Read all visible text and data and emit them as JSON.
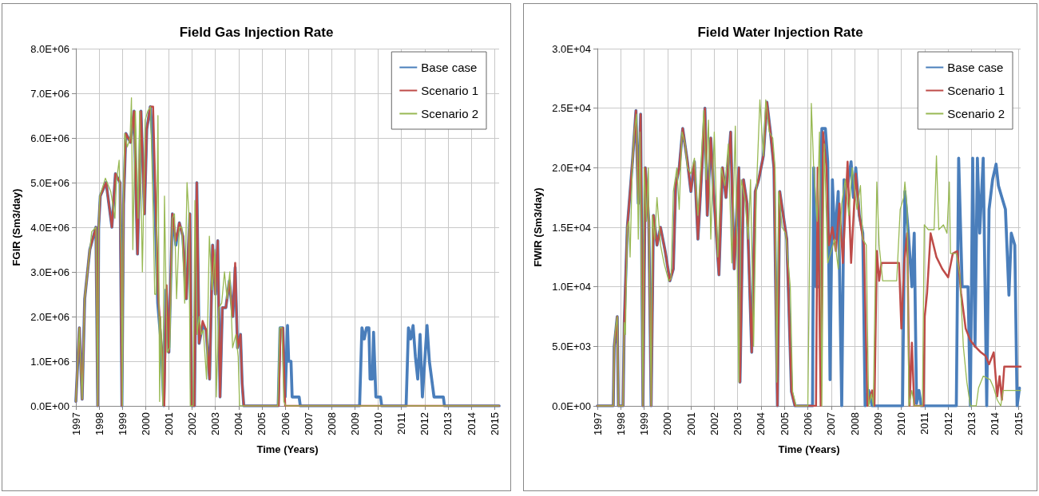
{
  "chart_data": [
    {
      "type": "line",
      "title": "Field Gas Injection Rate",
      "xlabel": "Time (Years)",
      "ylabel": "FGIR (Sm3/day)",
      "xlim": [
        1997,
        2015.2
      ],
      "xticks": [
        1997,
        1998,
        1999,
        2000,
        2001,
        2002,
        2003,
        2004,
        2005,
        2006,
        2007,
        2008,
        2009,
        2010,
        2011,
        2012,
        2013,
        2014,
        2015
      ],
      "ylim": [
        0,
        8000000.0
      ],
      "yticks": [
        {
          "value": 0,
          "label": "0.0E+00"
        },
        {
          "value": 1000000.0,
          "label": "1.0E+06"
        },
        {
          "value": 2000000.0,
          "label": "2.0E+06"
        },
        {
          "value": 3000000.0,
          "label": "3.0E+06"
        },
        {
          "value": 4000000.0,
          "label": "4.0E+06"
        },
        {
          "value": 5000000.0,
          "label": "5.0E+06"
        },
        {
          "value": 6000000.0,
          "label": "6.0E+06"
        },
        {
          "value": 7000000.0,
          "label": "7.0E+06"
        },
        {
          "value": 8000000.0,
          "label": "8.0E+06"
        }
      ],
      "grid": true,
      "legend": "top right",
      "marker": "none",
      "line_style": "solid",
      "series": [
        {
          "name": "Base case",
          "color": "#4a7ebb",
          "x": [
            1997.0,
            1997.15,
            1997.27,
            1997.38,
            1997.6,
            1997.86,
            1997.94,
            1997.98,
            1998.05,
            1998.3,
            1998.55,
            1998.7,
            1998.9,
            1998.98,
            1999.05,
            1999.15,
            1999.35,
            1999.5,
            1999.65,
            1999.8,
            1999.95,
            2000.05,
            2000.2,
            2000.3,
            2000.42,
            2000.52,
            2000.68,
            2000.78,
            2000.88,
            2001.0,
            2001.15,
            2001.3,
            2001.45,
            2001.6,
            2001.75,
            2001.9,
            2001.98,
            2002.1,
            2002.2,
            2002.3,
            2002.45,
            2002.6,
            2002.75,
            2002.88,
            2003.0,
            2003.1,
            2003.2,
            2003.3,
            2003.45,
            2003.6,
            2003.75,
            2003.85,
            2003.95,
            2004.08,
            2004.15,
            2004.22,
            2005.7,
            2005.78,
            2005.9,
            2006.0,
            2006.1,
            2006.15,
            2006.25,
            2006.3,
            2006.6,
            2006.65,
            2009.2,
            2009.3,
            2009.4,
            2009.5,
            2009.6,
            2009.65,
            2009.75,
            2009.8,
            2009.9,
            2010.1,
            2010.15,
            2011.2,
            2011.3,
            2011.4,
            2011.5,
            2011.6,
            2011.7,
            2011.8,
            2011.9,
            2012.1,
            2012.2,
            2012.4,
            2012.8,
            2012.85,
            2015.2
          ],
          "values": [
            100000.0,
            1750000.0,
            150000.0,
            2400000.0,
            3500000.0,
            4000000.0,
            0,
            4000000.0,
            4700000.0,
            5000000.0,
            4000000.0,
            5200000.0,
            5000000.0,
            0,
            4500000.0,
            6100000.0,
            5900000.0,
            6600000.0,
            3400000.0,
            6600000.0,
            4300000.0,
            6200000.0,
            6700000.0,
            6000000.0,
            4200000.0,
            2300000.0,
            1300000.0,
            0,
            2600000.0,
            1200000.0,
            4300000.0,
            3600000.0,
            4100000.0,
            3800000.0,
            2400000.0,
            4300000.0,
            0,
            0,
            5000000.0,
            1400000.0,
            1800000.0,
            1700000.0,
            600000.0,
            3600000.0,
            2500000.0,
            3700000.0,
            200000.0,
            2200000.0,
            2200000.0,
            2800000.0,
            2000000.0,
            3100000.0,
            1300000.0,
            1600000.0,
            500000.0,
            0,
            0,
            1750000.0,
            1750000.0,
            200000.0,
            1800000.0,
            1000000.0,
            1000000.0,
            200000.0,
            200000.0,
            0,
            0,
            1750000.0,
            1500000.0,
            1750000.0,
            1750000.0,
            600000.0,
            600000.0,
            1650000.0,
            200000.0,
            200000.0,
            0,
            0,
            1750000.0,
            1500000.0,
            1800000.0,
            1100000.0,
            600000.0,
            1600000.0,
            200000.0,
            1800000.0,
            1000000.0,
            200000.0,
            200000.0,
            0,
            0
          ]
        },
        {
          "name": "Scenario 1",
          "color": "#be4b48",
          "x": [
            1997.0,
            1997.15,
            1997.27,
            1997.38,
            1997.6,
            1997.86,
            1997.94,
            1997.98,
            1998.05,
            1998.3,
            1998.55,
            1998.7,
            1998.9,
            1998.98,
            1999.05,
            1999.15,
            1999.35,
            1999.5,
            1999.65,
            1999.8,
            1999.95,
            2000.05,
            2000.2,
            2000.32,
            2000.45,
            2000.55,
            2000.7,
            2000.8,
            2000.9,
            2001.0,
            2001.15,
            2001.3,
            2001.45,
            2001.6,
            2001.75,
            2001.9,
            2001.98,
            2002.1,
            2002.2,
            2002.3,
            2002.45,
            2002.6,
            2002.75,
            2002.88,
            2003.0,
            2003.1,
            2003.2,
            2003.3,
            2003.45,
            2003.6,
            2003.75,
            2003.85,
            2003.95,
            2004.08,
            2004.15,
            2004.22,
            2005.72,
            2005.8,
            2005.9,
            2006.0,
            2015.2
          ],
          "values": [
            100000.0,
            1750000.0,
            150000.0,
            2400000.0,
            3500000.0,
            4000000.0,
            0,
            4000000.0,
            4700000.0,
            5000000.0,
            4000000.0,
            5200000.0,
            5000000.0,
            0,
            4500000.0,
            6100000.0,
            5900000.0,
            6600000.0,
            3400000.0,
            6600000.0,
            4300000.0,
            6200000.0,
            6700000.0,
            6700000.0,
            4200000.0,
            2400000.0,
            1200000.0,
            0,
            2700000.0,
            1200000.0,
            4300000.0,
            3700000.0,
            4100000.0,
            3800000.0,
            2400000.0,
            4300000.0,
            0,
            0,
            5000000.0,
            1400000.0,
            1900000.0,
            1700000.0,
            600000.0,
            3600000.0,
            2500000.0,
            3700000.0,
            200000.0,
            2200000.0,
            2200000.0,
            2800000.0,
            2000000.0,
            3200000.0,
            1300000.0,
            1600000.0,
            500000.0,
            0,
            0,
            1700000.0,
            1750000.0,
            0,
            0
          ]
        },
        {
          "name": "Scenario 2",
          "color": "#98b954",
          "x": [
            1997.0,
            1997.15,
            1997.27,
            1997.38,
            1997.5,
            1997.68,
            1997.86,
            1997.94,
            1997.98,
            1998.03,
            1998.27,
            1998.5,
            1998.68,
            1998.74,
            1998.86,
            1998.95,
            1999.0,
            1999.04,
            1999.1,
            1999.21,
            1999.33,
            1999.39,
            1999.45,
            1999.56,
            1999.68,
            1999.74,
            1999.86,
            1999.98,
            2000.09,
            2000.21,
            2000.33,
            2000.39,
            2000.45,
            2000.53,
            2000.6,
            2000.65,
            2000.74,
            2000.81,
            2000.92,
            2001.04,
            2001.15,
            2001.24,
            2001.33,
            2001.45,
            2001.56,
            2001.68,
            2001.78,
            2001.86,
            2001.92,
            2002.04,
            2002.12,
            2002.21,
            2002.3,
            2002.39,
            2002.48,
            2002.62,
            2002.74,
            2002.86,
            2002.98,
            2003.04,
            2003.15,
            2003.27,
            2003.39,
            2003.5,
            2003.62,
            2003.74,
            2003.88,
            2003.98,
            2004.04,
            2005.68,
            2005.76,
            2005.86,
            2005.94,
            2006.03,
            2015.2
          ],
          "values": [
            100000.0,
            1750000.0,
            150000.0,
            2400000.0,
            3000000.0,
            3900000.0,
            4000000.0,
            0,
            4000000.0,
            4700000.0,
            5100000.0,
            4800000.0,
            4200000.0,
            5000000.0,
            5500000.0,
            3500000.0,
            0,
            4500000.0,
            6100000.0,
            5800000.0,
            6000000.0,
            6900000.0,
            3500000.0,
            6600000.0,
            4200000.0,
            6600000.0,
            3000000.0,
            6400000.0,
            6600000.0,
            6700000.0,
            4200000.0,
            2500000.0,
            2500000.0,
            6500000.0,
            100000.0,
            2000000.0,
            0,
            4700000.0,
            1200000.0,
            1300000.0,
            4200000.0,
            4300000.0,
            2400000.0,
            4000000.0,
            4000000.0,
            2300000.0,
            5000000.0,
            4300000.0,
            0,
            0,
            4600000.0,
            1600000.0,
            2000000.0,
            1600000.0,
            1700000.0,
            600000.0,
            3800000.0,
            2600000.0,
            3500000.0,
            200000.0,
            2200000.0,
            2300000.0,
            3000000.0,
            2400000.0,
            3000000.0,
            1300000.0,
            1600000.0,
            1100000.0,
            0,
            0,
            1750000.0,
            1750000.0,
            100000.0,
            0,
            0
          ]
        }
      ]
    },
    {
      "type": "line",
      "title": "Field Water Injection Rate",
      "xlabel": "Time (Years)",
      "ylabel": "FWIR (Sm3/day)",
      "xlim": [
        1997,
        2015.1
      ],
      "xticks": [
        1997,
        1998,
        1999,
        2000,
        2001,
        2002,
        2003,
        2004,
        2005,
        2006,
        2007,
        2008,
        2009,
        2010,
        2011,
        2012,
        2013,
        2014,
        2015
      ],
      "ylim": [
        0,
        30000.0
      ],
      "yticks": [
        {
          "value": 0,
          "label": "0.0E+00"
        },
        {
          "value": 5000.0,
          "label": "5.0E+03"
        },
        {
          "value": 10000.0,
          "label": "1.0E+04"
        },
        {
          "value": 15000.0,
          "label": "1.5E+04"
        },
        {
          "value": 20000.0,
          "label": "2.0E+04"
        },
        {
          "value": 25000.0,
          "label": "2.5E+04"
        },
        {
          "value": 30000.0,
          "label": "3.0E+04"
        }
      ],
      "grid": true,
      "legend": "top right",
      "marker": "none",
      "line_style": "solid",
      "series": [
        {
          "name": "Base case",
          "color": "#4a7ebb",
          "x": [
            1997.0,
            1997.68,
            1997.72,
            1997.85,
            1997.9,
            1998.1,
            1998.15,
            1998.28,
            1998.5,
            1998.65,
            1998.75,
            1998.85,
            1998.95,
            1999.05,
            1999.2,
            1999.3,
            1999.4,
            1999.55,
            1999.7,
            1999.9,
            2000.1,
            2000.25,
            2000.35,
            2000.5,
            2000.65,
            2000.85,
            2001.0,
            2001.15,
            2001.3,
            2001.5,
            2001.6,
            2001.7,
            2001.85,
            2002.0,
            2002.2,
            2002.35,
            2002.5,
            2002.7,
            2002.85,
            2003.05,
            2003.1,
            2003.25,
            2003.4,
            2003.6,
            2003.75,
            2003.9,
            2004.1,
            2004.25,
            2004.4,
            2004.55,
            2004.7,
            2004.8,
            2004.95,
            2005.1,
            2005.3,
            2005.45,
            2006.2,
            2006.25,
            2006.35,
            2006.5,
            2006.6,
            2006.75,
            2006.85,
            2006.95,
            2007.05,
            2007.15,
            2007.3,
            2007.45,
            2007.55,
            2007.7,
            2007.85,
            2007.95,
            2008.05,
            2008.2,
            2008.35,
            2008.45,
            2008.6,
            2008.75,
            2010.05,
            2010.15,
            2010.3,
            2010.45,
            2010.55,
            2010.65,
            2010.75,
            2010.85,
            2012.35,
            2012.45,
            2012.6,
            2012.85,
            2012.95,
            2013.05,
            2013.15,
            2013.25,
            2013.35,
            2013.5,
            2013.65,
            2013.75,
            2013.9,
            2014.05,
            2014.15,
            2014.3,
            2014.45,
            2014.6,
            2014.7,
            2014.85,
            2014.95,
            2015.05
          ],
          "values": [
            0,
            0,
            5000.0,
            7500.0,
            0,
            0,
            7000.0,
            15000.0,
            20500.0,
            24800.0,
            17000.0,
            24500.0,
            0,
            20000.0,
            15500.0,
            0,
            16000.0,
            13500.0,
            15000.0,
            13000.0,
            10500.0,
            11500.0,
            18500.0,
            20000.0,
            23300.0,
            20500.0,
            18000.0,
            20500.0,
            14000.0,
            21000.0,
            25000.0,
            16000.0,
            22500.0,
            17000.0,
            11000.0,
            20000.0,
            17500.0,
            23000.0,
            11500.0,
            20000.0,
            2000.0,
            19000.0,
            17000.0,
            4500.0,
            18000.0,
            19000.0,
            21000.0,
            25500.0,
            23000.0,
            20000.0,
            0,
            18000.0,
            16000.0,
            14000.0,
            1200.0,
            0,
            0,
            20000.0,
            10000.0,
            10000.0,
            23300.0,
            23300.0,
            20500.0,
            2200.0,
            19000.0,
            14000.0,
            18000.0,
            0,
            19000.0,
            18500.0,
            20500.0,
            17500.0,
            20000.0,
            16000.0,
            14500.0,
            0,
            1300.0,
            0,
            0,
            18000.0,
            14500.0,
            10000.0,
            14500.0,
            200.0,
            1300.0,
            0,
            0,
            20800.0,
            10000.0,
            10000.0,
            0,
            20800.0,
            5000.0,
            20800.0,
            14500.0,
            20800.0,
            0,
            16500.0,
            19000.0,
            20300.0,
            18500.0,
            17500.0,
            16500.0,
            9300.0,
            14500.0,
            13500.0,
            0,
            1500.0
          ]
        },
        {
          "name": "Scenario 1",
          "color": "#be4b48",
          "x": [
            1997.0,
            1997.68,
            1997.72,
            1997.85,
            1997.9,
            1998.1,
            1998.15,
            1998.28,
            1998.5,
            1998.65,
            1998.75,
            1998.85,
            1998.95,
            1999.05,
            1999.2,
            1999.3,
            1999.4,
            1999.55,
            1999.7,
            1999.9,
            2000.1,
            2000.25,
            2000.35,
            2000.5,
            2000.65,
            2000.85,
            2001.0,
            2001.15,
            2001.3,
            2001.5,
            2001.6,
            2001.7,
            2001.85,
            2002.0,
            2002.2,
            2002.35,
            2002.5,
            2002.7,
            2002.85,
            2003.05,
            2003.1,
            2003.25,
            2003.4,
            2003.6,
            2003.75,
            2003.9,
            2004.1,
            2004.25,
            2004.4,
            2004.55,
            2004.7,
            2004.8,
            2004.95,
            2005.1,
            2005.3,
            2005.45,
            2006.35,
            2006.42,
            2006.55,
            2006.65,
            2006.8,
            2006.9,
            2007.05,
            2007.2,
            2007.35,
            2007.5,
            2007.7,
            2007.85,
            2008.05,
            2008.2,
            2008.4,
            2008.55,
            2008.75,
            2008.85,
            2008.95,
            2009.05,
            2009.15,
            2009.5,
            2009.9,
            2010.0,
            2010.12,
            2010.25,
            2010.35,
            2010.45,
            2010.55,
            2010.95,
            2011.0,
            2011.1,
            2011.25,
            2011.5,
            2011.75,
            2012.0,
            2012.2,
            2012.4,
            2012.55,
            2012.75,
            2012.95,
            2013.15,
            2013.4,
            2013.6,
            2013.75,
            2013.95,
            2014.1,
            2014.2,
            2014.3,
            2014.4,
            2015.1
          ],
          "values": [
            0,
            0,
            5000.0,
            7500.0,
            0,
            0,
            7000.0,
            15000.0,
            20500.0,
            24800.0,
            17000.0,
            24500.0,
            0,
            20000.0,
            15500.0,
            0,
            16000.0,
            13500.0,
            15000.0,
            13000.0,
            10500.0,
            11500.0,
            18500.0,
            20000.0,
            23300.0,
            20500.0,
            18000.0,
            20500.0,
            14000.0,
            21000.0,
            25000.0,
            16000.0,
            22500.0,
            17000.0,
            11000.0,
            20000.0,
            17500.0,
            23000.0,
            11500.0,
            20000.0,
            2000.0,
            19000.0,
            17000.0,
            4500.0,
            18000.0,
            19000.0,
            21000.0,
            25500.0,
            23000.0,
            20000.0,
            0,
            18000.0,
            16000.0,
            14000.0,
            1200.0,
            0,
            0,
            20000.0,
            0,
            23000.0,
            20000.0,
            13500.0,
            15000.0,
            13000.0,
            17000.0,
            12000.0,
            20500.0,
            12000.0,
            19500.0,
            16000.0,
            13500.0,
            0,
            1300.0,
            0,
            13000.0,
            10500.0,
            12000.0,
            12000.0,
            12000.0,
            6500.0,
            12000.0,
            14500.0,
            0,
            5300.0,
            0,
            0,
            7500.0,
            9500.0,
            14500.0,
            12500.0,
            11500.0,
            10800.0,
            12800.0,
            13000.0,
            9500.0,
            6500.0,
            5500.0,
            5000.0,
            4500.0,
            4200.0,
            3500.0,
            4500.0,
            800.0,
            2500.0,
            500.0,
            3300.0,
            3300.0
          ]
        },
        {
          "name": "Scenario 2",
          "color": "#98b954",
          "x": [
            1997.0,
            1997.68,
            1997.72,
            1997.78,
            1997.85,
            1997.9,
            1998.1,
            1998.15,
            1998.2,
            1998.28,
            1998.35,
            1998.4,
            1998.5,
            1998.58,
            1998.68,
            1998.75,
            1998.82,
            1998.95,
            1999.0,
            1999.1,
            1999.18,
            1999.3,
            1999.35,
            1999.45,
            1999.55,
            1999.7,
            1999.85,
            2000.05,
            2000.15,
            2000.25,
            2000.4,
            2000.5,
            2000.62,
            2000.75,
            2000.85,
            2001.0,
            2001.15,
            2001.3,
            2001.45,
            2001.55,
            2001.65,
            2001.75,
            2001.85,
            2002.0,
            2002.15,
            2002.3,
            2002.45,
            2002.6,
            2002.75,
            2002.9,
            2003.05,
            2003.15,
            2003.3,
            2003.45,
            2003.55,
            2003.68,
            2003.8,
            2003.95,
            2004.1,
            2004.2,
            2004.35,
            2004.5,
            2004.6,
            2004.67,
            2004.75,
            2004.9,
            2005.05,
            2005.25,
            2005.35,
            2005.5,
            2006.0,
            2006.15,
            2006.25,
            2006.4,
            2006.5,
            2006.6,
            2006.7,
            2006.85,
            2007.0,
            2007.15,
            2007.3,
            2007.45,
            2007.6,
            2007.75,
            2007.9,
            2008.1,
            2008.25,
            2008.35,
            2008.5,
            2008.6,
            2008.72,
            2008.8,
            2008.95,
            2009.05,
            2009.2,
            2009.5,
            2009.8,
            2009.95,
            2010.1,
            2010.15,
            2010.25,
            2010.32,
            2010.45,
            2010.55,
            2010.9,
            2010.98,
            2011.15,
            2011.4,
            2011.5,
            2011.6,
            2011.8,
            2011.95,
            2012.05,
            2012.1,
            2012.35,
            2012.5,
            2012.65,
            2012.8,
            2012.95,
            2013.2,
            2013.3,
            2013.5,
            2013.8,
            2013.95,
            2014.1,
            2014.25,
            2014.35,
            2015.1
          ],
          "values": [
            0,
            0,
            5000.0,
            6500.0,
            7500.0,
            0,
            0,
            7000.0,
            6000.0,
            15000.0,
            15500.0,
            12500.0,
            20500.0,
            23000.0,
            24500.0,
            14000.0,
            23000.0,
            0,
            20000.0,
            15500.0,
            20000.0,
            0,
            16000.0,
            14000.0,
            17500.0,
            13500.0,
            12000.0,
            10500.0,
            10700.0,
            18000.0,
            20000.0,
            16500.0,
            23000.0,
            22000.0,
            20000.0,
            19500.0,
            20800.0,
            16000.0,
            21000.0,
            24800.0,
            19000.0,
            24000.0,
            14000.0,
            23000.0,
            12500.0,
            20000.0,
            18500.0,
            22000.0,
            12000.0,
            23500.0,
            2000.0,
            19000.0,
            17500.0,
            14000.0,
            19000.0,
            5000.0,
            18000.0,
            25700.0,
            21000.0,
            25700.0,
            23000.0,
            22500.0,
            20000.0,
            2000.0,
            18000.0,
            15000.0,
            14500.0,
            10000.0,
            1200.0,
            0,
            0,
            25400.0,
            20000.0,
            15500.0,
            23000.0,
            0,
            22000.0,
            12000.0,
            13000.0,
            14000.0,
            11500.0,
            17000.0,
            19000.0,
            16000.0,
            20000.0,
            16500.0,
            18500.0,
            14000.0,
            13500.0,
            0,
            1000.0,
            0,
            18800.0,
            13500.0,
            10500.0,
            10500.0,
            10500.0,
            16500.0,
            17500.0,
            18800.0,
            16500.0,
            0,
            1300.0,
            0,
            0,
            15200.0,
            14800.0,
            14800.0,
            21000.0,
            14800.0,
            15200.0,
            14500.0,
            18800.0,
            12800.0,
            12800.0,
            11000.0,
            5000.0,
            2000.0,
            0,
            0,
            1500.0,
            2500.0,
            2200.0,
            1500.0,
            500.0,
            0,
            1300.0,
            1300.0
          ]
        }
      ]
    }
  ]
}
